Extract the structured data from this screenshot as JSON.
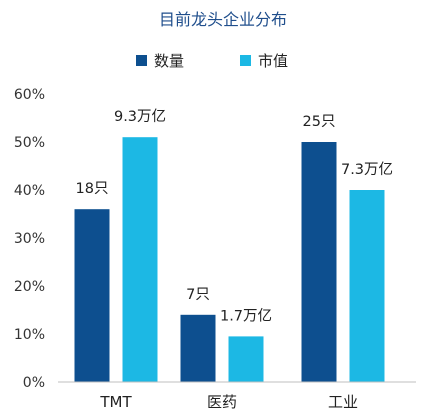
{
  "chart_data": {
    "type": "bar",
    "title": "目前龙头企业分布",
    "categories": [
      "TMT",
      "医药",
      "工业"
    ],
    "series": [
      {
        "name": "数量",
        "values": [
          36,
          14,
          50
        ],
        "labels": [
          "18只",
          "7只",
          "25只"
        ],
        "color": "#0d4f8f"
      },
      {
        "name": "市值",
        "values": [
          51,
          9.5,
          40
        ],
        "labels": [
          "9.3万亿",
          "1.7万亿",
          "7.3万亿"
        ],
        "color": "#1cb8e4"
      }
    ],
    "yticks": [
      "0%",
      "10%",
      "20%",
      "30%",
      "40%",
      "50%",
      "60%"
    ],
    "ylim": [
      0,
      60
    ],
    "legend": "top-center",
    "grid": false
  }
}
